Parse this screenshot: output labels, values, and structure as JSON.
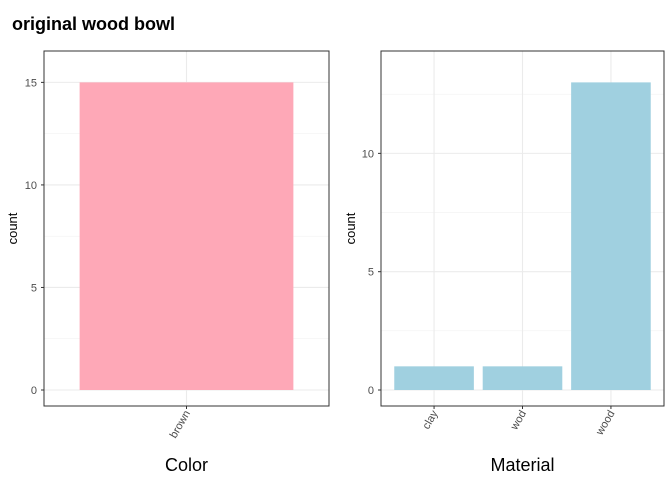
{
  "title": "original wood bowl",
  "chart_data": [
    {
      "type": "bar",
      "categories": [
        "brown"
      ],
      "values": [
        15
      ],
      "xlabel": "Color",
      "ylabel": "count",
      "ylim": [
        0,
        15.75
      ],
      "yticks": [
        0,
        5,
        10,
        15
      ],
      "color": "#fea8b7",
      "grid": true
    },
    {
      "type": "bar",
      "categories": [
        "clay",
        "wod",
        "wood"
      ],
      "values": [
        1,
        1,
        13
      ],
      "xlabel": "Material",
      "ylabel": "count",
      "ylim": [
        0,
        13.65
      ],
      "yticks": [
        0,
        5,
        10
      ],
      "color": "#a0d0e0",
      "grid": true
    }
  ]
}
